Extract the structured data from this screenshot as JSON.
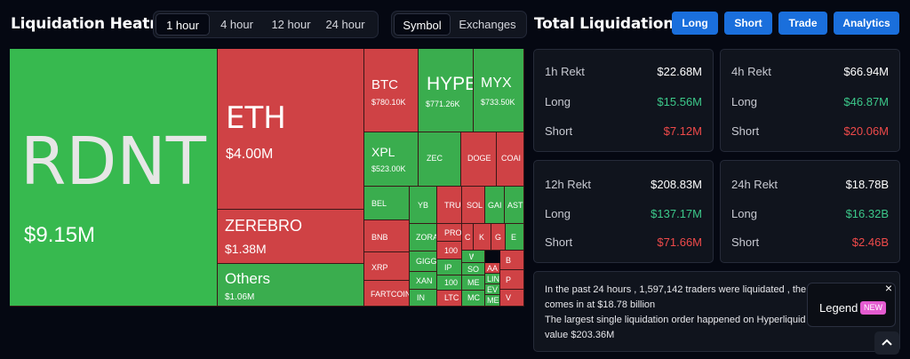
{
  "header": {
    "title": "Liquidation Heatmap"
  },
  "time_tabs": [
    {
      "label": "1 hour",
      "active": true
    },
    {
      "label": "4 hour",
      "active": false
    },
    {
      "label": "12 hour",
      "active": false
    },
    {
      "label": "24 hour",
      "active": false
    }
  ],
  "mode_tabs": [
    {
      "label": "Symbol",
      "active": true
    },
    {
      "label": "Exchanges",
      "active": false
    }
  ],
  "heatmap": {
    "tiles": [
      {
        "symbol": "RDNT",
        "value": "$9.15M",
        "trend": "long"
      },
      {
        "symbol": "ETH",
        "value": "$4.00M",
        "trend": "short"
      },
      {
        "symbol": "ZEREBRO",
        "value": "$1.38M",
        "trend": "short"
      },
      {
        "symbol": "Others",
        "value": "$1.06M",
        "trend": "long"
      },
      {
        "symbol": "BTC",
        "value": "$780.10K",
        "trend": "short"
      },
      {
        "symbol": "HYPE",
        "value": "$771.26K",
        "trend": "long"
      },
      {
        "symbol": "MYX",
        "value": "$733.50K",
        "trend": "long"
      },
      {
        "symbol": "XPL",
        "value": "$523.00K",
        "trend": "long"
      },
      {
        "symbol": "ZEC",
        "trend": "long"
      },
      {
        "symbol": "DOGE",
        "trend": "short"
      },
      {
        "symbol": "COAI",
        "trend": "short"
      },
      {
        "symbol": "BEL",
        "trend": "long"
      },
      {
        "symbol": "BNB",
        "trend": "short"
      },
      {
        "symbol": "XRP",
        "trend": "short"
      },
      {
        "symbol": "FARTCOIN",
        "trend": "short"
      },
      {
        "symbol": "YB",
        "trend": "long"
      },
      {
        "symbol": "TRU",
        "trend": "short"
      },
      {
        "symbol": "SOL",
        "trend": "short"
      },
      {
        "symbol": "GAI",
        "trend": "long"
      },
      {
        "symbol": "AST",
        "trend": "long"
      },
      {
        "symbol": "ZORA",
        "trend": "long"
      },
      {
        "symbol": "GIGG",
        "trend": "long"
      },
      {
        "symbol": "XAN",
        "trend": "long"
      },
      {
        "symbol": "IN",
        "trend": "long"
      },
      {
        "symbol": "PRO",
        "trend": "short"
      },
      {
        "symbol": "100",
        "trend": "short"
      },
      {
        "symbol": "IP",
        "trend": "long"
      },
      {
        "symbol": "100",
        "trend": "long"
      },
      {
        "symbol": "LTC",
        "trend": "short"
      },
      {
        "symbol": "C",
        "trend": "short"
      },
      {
        "symbol": "W",
        "trend": "long"
      },
      {
        "symbol": "SO",
        "trend": "long"
      },
      {
        "symbol": "ME",
        "trend": "long"
      },
      {
        "symbol": "MC",
        "trend": "long"
      },
      {
        "symbol": "K",
        "trend": "short"
      },
      {
        "symbol": "AA",
        "trend": "short"
      },
      {
        "symbol": "LIN",
        "trend": "long"
      },
      {
        "symbol": "EV",
        "trend": "long"
      },
      {
        "symbol": "ME",
        "trend": "long"
      },
      {
        "symbol": "G",
        "trend": "short"
      },
      {
        "symbol": "E",
        "trend": "long"
      },
      {
        "symbol": "B",
        "trend": "short"
      },
      {
        "symbol": "P",
        "trend": "short"
      },
      {
        "symbol": "V",
        "trend": "short"
      }
    ]
  },
  "total_liquidations": {
    "title": "Total Liquidations",
    "buttons": [
      "Long",
      "Short",
      "Trade",
      "Analytics"
    ],
    "cards": [
      {
        "label": "1h Rekt",
        "total": "$22.68M",
        "long_label": "Long",
        "long": "$15.56M",
        "short_label": "Short",
        "short": "$7.12M"
      },
      {
        "label": "4h Rekt",
        "total": "$66.94M",
        "long_label": "Long",
        "long": "$46.87M",
        "short_label": "Short",
        "short": "$20.06M"
      },
      {
        "label": "12h Rekt",
        "total": "$208.83M",
        "long_label": "Long",
        "long": "$137.17M",
        "short_label": "Short",
        "short": "$71.66M"
      },
      {
        "label": "24h Rekt",
        "total": "$18.78B",
        "long_label": "Long",
        "long": "$16.32B",
        "short_label": "Short",
        "short": "$2.46B"
      }
    ]
  },
  "summary": {
    "line1": "In the past 24 hours , 1,597,142 traders were liquidated , the",
    "line2": "comes in at $18.78 billion",
    "line3": "The largest single liquidation order happened on Hyperliquid",
    "line4": "value $203.36M"
  },
  "legend": {
    "label": "Legend",
    "badge": "NEW",
    "close": "×"
  },
  "colors": {
    "long": "#37b94f",
    "short": "#cf4245",
    "accent": "#1a6fdc",
    "long_text": "#3cc88a",
    "short_text": "#ef4a4a"
  },
  "icons": {
    "close": "close-icon",
    "scroll_top": "chevron-up-icon"
  }
}
